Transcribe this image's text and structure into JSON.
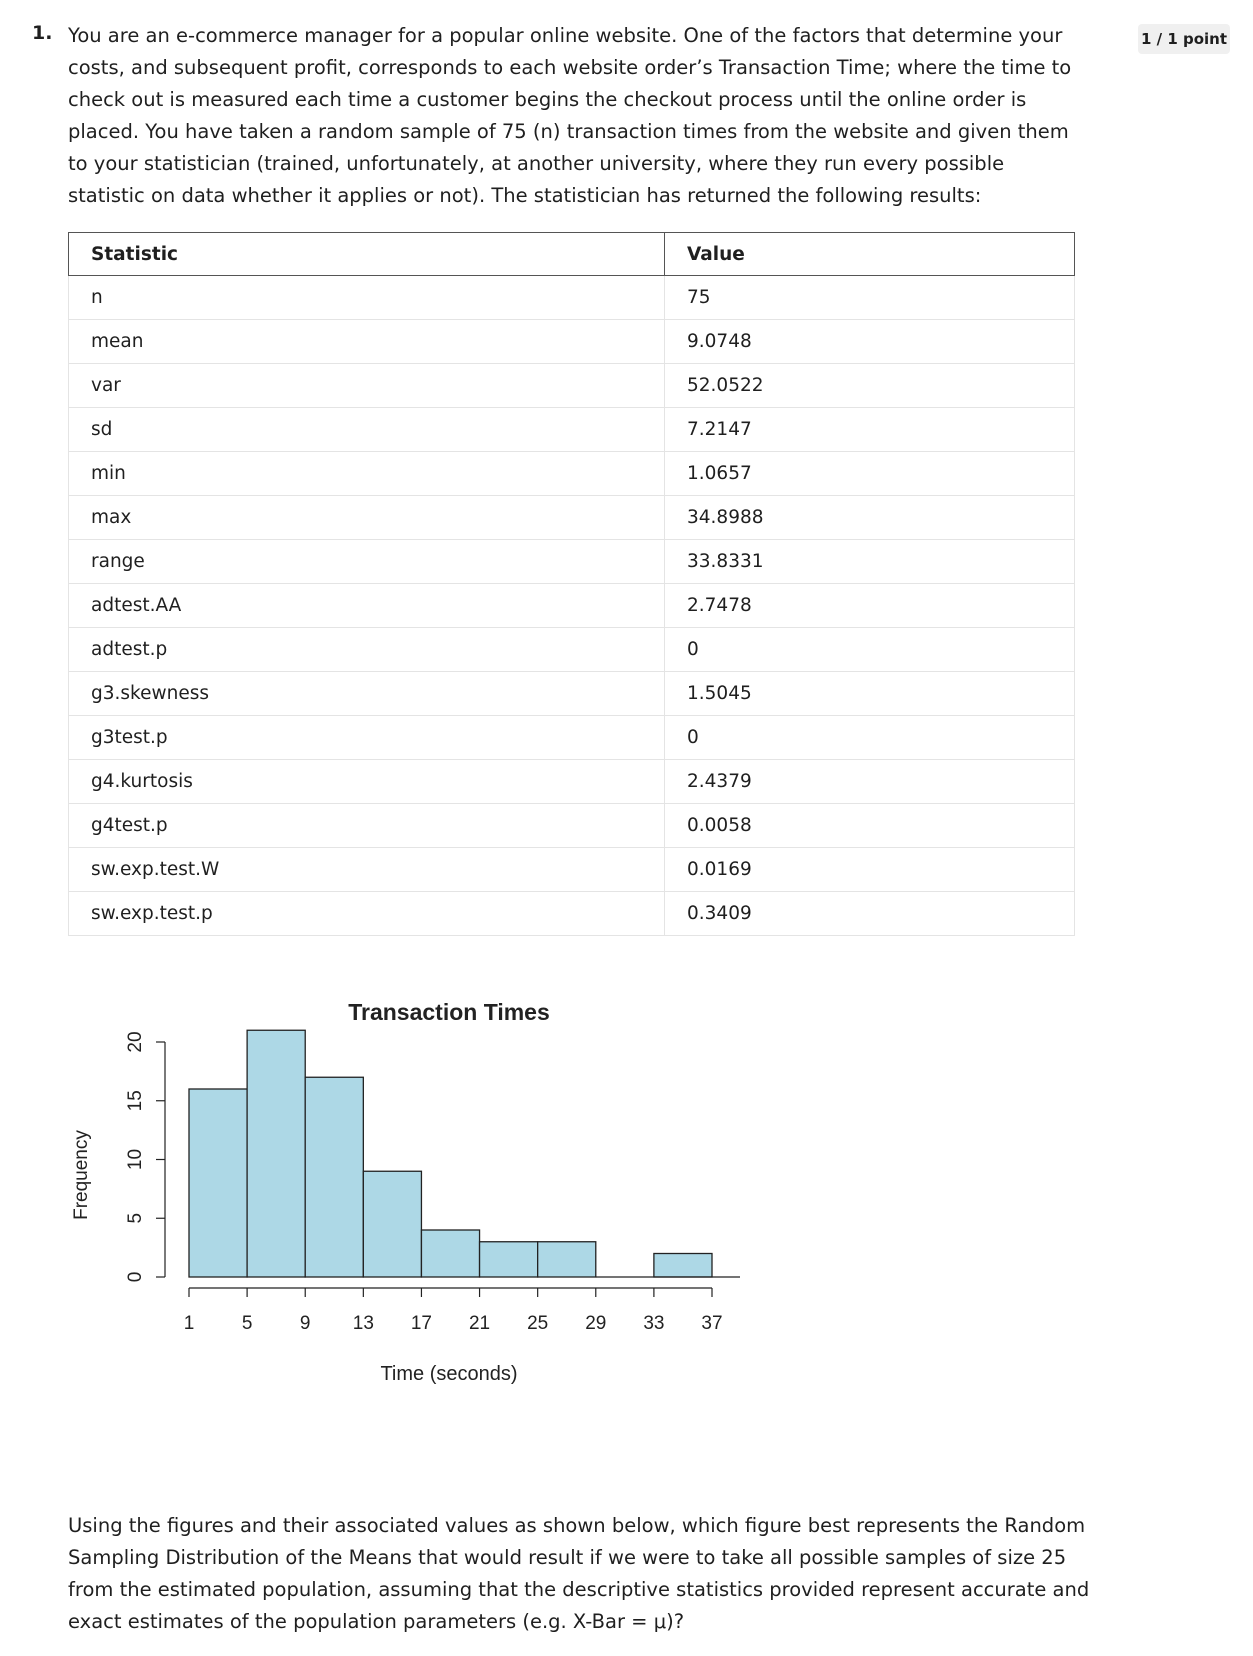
{
  "question": {
    "number": "1.",
    "text": "You are an e-commerce manager for a popular online website. One of the factors that determine your costs, and subsequent profit, corresponds to each website order’s Transaction Time; where the time to check out is measured each time a customer begins the checkout process until the online order is placed. You have taken a random sample of 75 (n) transaction times from the website and given them to your statistician (trained, unfortunately, at another university, where they run every possible statistic on data whether it applies or not). The statistician has returned the following results:",
    "points": "1 / 1 point",
    "footer": "Using the figures and their associated values as shown below, which figure best represents the Random Sampling Distribution of the Means that would result if we were to take all possible samples of size 25 from the estimated population, assuming that the descriptive statistics provided represent accurate and exact estimates of the population parameters (e.g. X-Bar = μ)?"
  },
  "table": {
    "headers": [
      "Statistic",
      "Value"
    ],
    "rows": [
      [
        "n",
        "75"
      ],
      [
        "mean",
        "9.0748"
      ],
      [
        "var",
        "52.0522"
      ],
      [
        "sd",
        "7.2147"
      ],
      [
        "min",
        "1.0657"
      ],
      [
        "max",
        "34.8988"
      ],
      [
        "range",
        "33.8331"
      ],
      [
        "adtest.AA",
        "2.7478"
      ],
      [
        "adtest.p",
        "0"
      ],
      [
        "g3.skewness",
        "1.5045"
      ],
      [
        "g3test.p",
        "0"
      ],
      [
        "g4.kurtosis",
        "2.4379"
      ],
      [
        "g4test.p",
        "0.0058"
      ],
      [
        "sw.exp.test.W",
        "0.0169"
      ],
      [
        "sw.exp.test.p",
        "0.3409"
      ]
    ]
  },
  "chart_data": {
    "type": "bar",
    "title": "Transaction Times",
    "xlabel": "Time (seconds)",
    "ylabel": "Frequency",
    "bins": [
      [
        1,
        5
      ],
      [
        5,
        9
      ],
      [
        9,
        13
      ],
      [
        13,
        17
      ],
      [
        17,
        21
      ],
      [
        21,
        25
      ],
      [
        25,
        29
      ],
      [
        29,
        33
      ],
      [
        33,
        37
      ]
    ],
    "values": [
      16,
      21,
      17,
      9,
      4,
      3,
      3,
      0,
      2
    ],
    "x_ticks": [
      1,
      5,
      9,
      13,
      17,
      21,
      25,
      29,
      33,
      37
    ],
    "y_ticks": [
      0,
      5,
      10,
      15,
      20
    ],
    "xlim": [
      1,
      37
    ],
    "ylim": [
      0,
      21
    ],
    "bar_color": "#add8e6"
  }
}
